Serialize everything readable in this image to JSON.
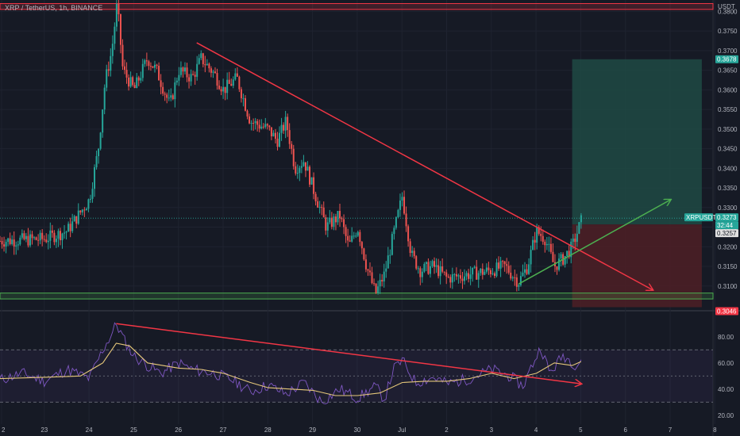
{
  "header": {
    "symbol": "XRP / TetherUS, 1h, BINANCE",
    "currency": "USDT"
  },
  "colors": {
    "background": "#161a25",
    "up": "#26a69a",
    "down": "#ef5350",
    "trendline_red": "#f23645",
    "trendline_green": "#4caf50",
    "rsi_line": "#7e57c2",
    "rsi_ma": "#e6c87a",
    "target_zone": "#1e4a44",
    "stop_zone": "#4a1f26"
  },
  "chart_data": [
    {
      "type": "candlestick",
      "title": "XRP / TetherUS, 1h, BINANCE",
      "x_ticks": [
        "2",
        "23",
        "24",
        "25",
        "26",
        "27",
        "28",
        "29",
        "30",
        "Jul",
        "2",
        "3",
        "4",
        "5",
        "6",
        "7",
        "8"
      ],
      "y_ticks": [
        "0.3800",
        "0.3750",
        "0.3700",
        "0.3650",
        "0.3600",
        "0.3550",
        "0.3500",
        "0.3450",
        "0.3400",
        "0.3350",
        "0.3300",
        "0.3250",
        "0.3200",
        "0.3150",
        "0.3100"
      ],
      "ylim": [
        0.3045,
        0.3825
      ],
      "xlim": [
        0,
        16
      ],
      "price_path": [
        [
          0,
          0.3215
        ],
        [
          1,
          0.322
        ],
        [
          1.5,
          0.324
        ],
        [
          2.0,
          0.332
        ],
        [
          2.2,
          0.345
        ],
        [
          2.35,
          0.362
        ],
        [
          2.5,
          0.37
        ],
        [
          2.62,
          0.382
        ],
        [
          2.75,
          0.365
        ],
        [
          3.0,
          0.36
        ],
        [
          3.3,
          0.368
        ],
        [
          3.5,
          0.365
        ],
        [
          3.8,
          0.356
        ],
        [
          4.0,
          0.365
        ],
        [
          4.3,
          0.363
        ],
        [
          4.5,
          0.368
        ],
        [
          4.8,
          0.364
        ],
        [
          5.0,
          0.36
        ],
        [
          5.3,
          0.363
        ],
        [
          5.6,
          0.352
        ],
        [
          6.0,
          0.35
        ],
        [
          6.2,
          0.347
        ],
        [
          6.4,
          0.352
        ],
        [
          6.6,
          0.34
        ],
        [
          6.8,
          0.342
        ],
        [
          7.0,
          0.335
        ],
        [
          7.3,
          0.325
        ],
        [
          7.6,
          0.328
        ],
        [
          7.8,
          0.32
        ],
        [
          8.0,
          0.325
        ],
        [
          8.2,
          0.315
        ],
        [
          8.4,
          0.308
        ],
        [
          8.6,
          0.313
        ],
        [
          8.8,
          0.323
        ],
        [
          9.0,
          0.333
        ],
        [
          9.2,
          0.318
        ],
        [
          9.4,
          0.314
        ],
        [
          9.7,
          0.315
        ],
        [
          10.0,
          0.312
        ],
        [
          10.5,
          0.313
        ],
        [
          11.0,
          0.314
        ],
        [
          11.3,
          0.315
        ],
        [
          11.6,
          0.311
        ],
        [
          11.8,
          0.315
        ],
        [
          12.0,
          0.324
        ],
        [
          12.2,
          0.322
        ],
        [
          12.4,
          0.315
        ],
        [
          12.6,
          0.317
        ],
        [
          12.8,
          0.32
        ],
        [
          13.0,
          0.3265
        ]
      ],
      "horizontal_levels": [
        {
          "name": "resistance",
          "from": 0.3805,
          "to": 0.382,
          "color": "#f23645"
        },
        {
          "name": "support",
          "from": 0.3067,
          "to": 0.3082,
          "color": "#4caf50"
        }
      ],
      "trendlines": [
        {
          "name": "descending-resistance",
          "color": "#f23645",
          "points": [
            [
              4.4,
              0.372
            ],
            [
              14.6,
              0.309
            ]
          ],
          "arrow": true
        },
        {
          "name": "ascending-support",
          "color": "#4caf50",
          "points": [
            [
              11.6,
              0.3105
            ],
            [
              15.0,
              0.332
            ]
          ],
          "arrow": true
        }
      ],
      "position": {
        "entry": 0.3257,
        "target": 0.3678,
        "stop": 0.3046,
        "x_start": 12.8,
        "x_end": 15.7
      },
      "price_tags": [
        {
          "label": "0.3678",
          "value": 0.3678,
          "color": "#26a69a"
        },
        {
          "label": "XRPUSDT",
          "value": 0.3273,
          "color": "#26a69a"
        },
        {
          "label": "0.3273",
          "value": 0.3273,
          "color": "#26a69a"
        },
        {
          "label": "32:44",
          "value": 0.3273,
          "color": "#26a69a"
        },
        {
          "label": "0.3257",
          "value": 0.3257,
          "color": "#e0e0e0"
        },
        {
          "label": "0.3046",
          "value": 0.3046,
          "color": "#f23645"
        }
      ]
    },
    {
      "type": "line",
      "title": "",
      "ylim": [
        15,
        95
      ],
      "y_ticks": [
        "80.00",
        "60.00",
        "40.00",
        "20.00"
      ],
      "bands": [
        30,
        50,
        70
      ],
      "rsi_path": [
        [
          0,
          47
        ],
        [
          0.5,
          52
        ],
        [
          1.0,
          46
        ],
        [
          1.5,
          55
        ],
        [
          2.0,
          48
        ],
        [
          2.3,
          70
        ],
        [
          2.5,
          82
        ],
        [
          2.6,
          90
        ],
        [
          2.8,
          76
        ],
        [
          3.0,
          65
        ],
        [
          3.3,
          58
        ],
        [
          3.6,
          52
        ],
        [
          4.0,
          60
        ],
        [
          4.3,
          55
        ],
        [
          4.8,
          52
        ],
        [
          5.2,
          47
        ],
        [
          5.6,
          38
        ],
        [
          6.0,
          43
        ],
        [
          6.4,
          36
        ],
        [
          6.8,
          45
        ],
        [
          7.2,
          30
        ],
        [
          7.6,
          40
        ],
        [
          8.0,
          33
        ],
        [
          8.4,
          42
        ],
        [
          8.6,
          32
        ],
        [
          8.8,
          55
        ],
        [
          9.0,
          62
        ],
        [
          9.3,
          45
        ],
        [
          9.7,
          49
        ],
        [
          10.0,
          44
        ],
        [
          10.5,
          48
        ],
        [
          11.0,
          55
        ],
        [
          11.4,
          50
        ],
        [
          11.7,
          42
        ],
        [
          11.9,
          58
        ],
        [
          12.1,
          72
        ],
        [
          12.3,
          52
        ],
        [
          12.6,
          66
        ],
        [
          12.9,
          58
        ],
        [
          13.0,
          63
        ]
      ],
      "rsi_ma_path": [
        [
          0,
          48
        ],
        [
          1.0,
          49
        ],
        [
          1.8,
          50
        ],
        [
          2.3,
          60
        ],
        [
          2.6,
          75
        ],
        [
          2.9,
          73
        ],
        [
          3.3,
          60
        ],
        [
          4.0,
          56
        ],
        [
          4.5,
          55
        ],
        [
          5.0,
          52
        ],
        [
          5.6,
          45
        ],
        [
          6.0,
          41
        ],
        [
          6.5,
          40
        ],
        [
          7.0,
          39
        ],
        [
          7.5,
          35
        ],
        [
          8.0,
          35
        ],
        [
          8.5,
          37
        ],
        [
          9.0,
          45
        ],
        [
          9.5,
          46
        ],
        [
          10.0,
          46
        ],
        [
          10.5,
          48
        ],
        [
          11.0,
          52
        ],
        [
          11.5,
          48
        ],
        [
          12.0,
          52
        ],
        [
          12.4,
          60
        ],
        [
          12.8,
          58
        ],
        [
          13.0,
          61
        ]
      ],
      "trendline": {
        "color": "#f23645",
        "points": [
          [
            2.6,
            90
          ],
          [
            13.0,
            44
          ]
        ],
        "arrow": true
      }
    }
  ]
}
